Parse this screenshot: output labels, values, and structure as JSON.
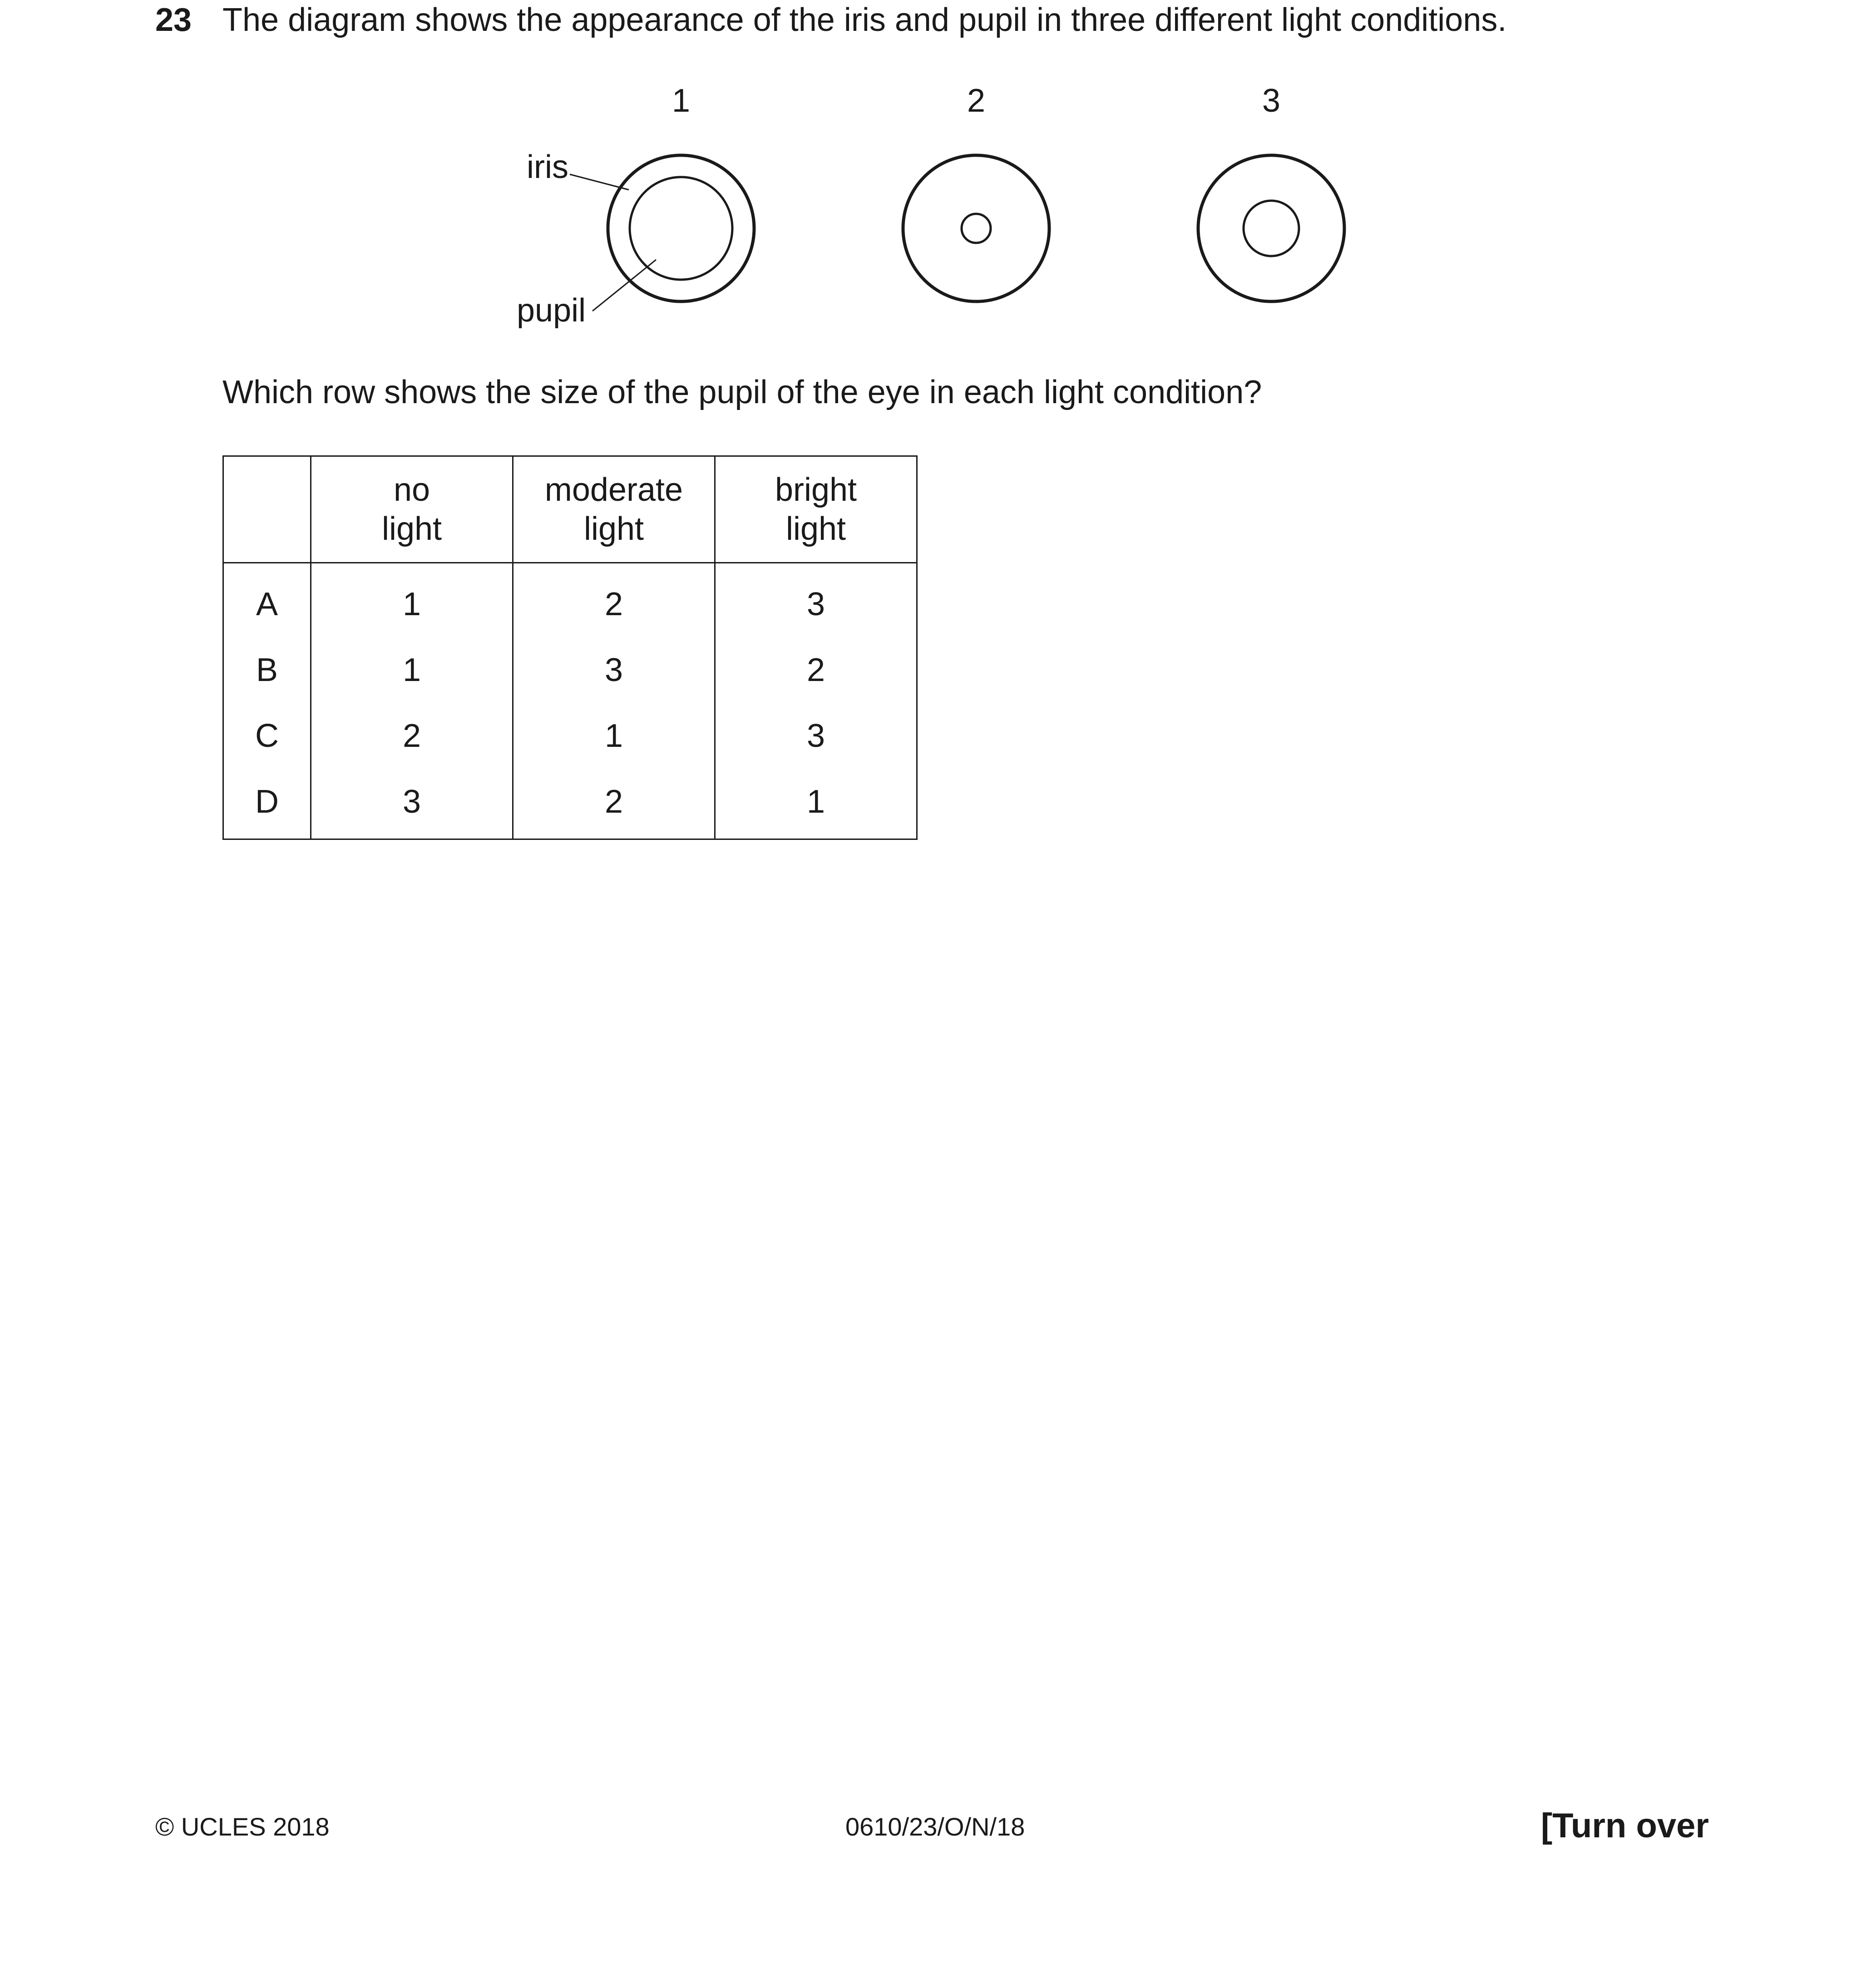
{
  "question": {
    "number": "23",
    "stem": "The diagram shows the appearance of the iris and pupil in three different light conditions.",
    "prompt": "Which row shows the size of the pupil of the eye in each light condition?"
  },
  "diagram": {
    "eyes": [
      {
        "label": "1",
        "pupil_size": "large"
      },
      {
        "label": "2",
        "pupil_size": "small"
      },
      {
        "label": "3",
        "pupil_size": "medium"
      }
    ],
    "labels": {
      "iris": "iris",
      "pupil": "pupil"
    }
  },
  "table": {
    "headers": [
      "",
      [
        "no",
        "light"
      ],
      [
        "moderate",
        "light"
      ],
      [
        "bright",
        "light"
      ]
    ],
    "rows": [
      {
        "key": "A",
        "values": [
          "1",
          "2",
          "3"
        ]
      },
      {
        "key": "B",
        "values": [
          "1",
          "3",
          "2"
        ]
      },
      {
        "key": "C",
        "values": [
          "2",
          "1",
          "3"
        ]
      },
      {
        "key": "D",
        "values": [
          "3",
          "2",
          "1"
        ]
      }
    ]
  },
  "footer": {
    "copyright": "© UCLES 2018",
    "code": "0610/23/O/N/18",
    "turn_over": "[Turn over"
  }
}
